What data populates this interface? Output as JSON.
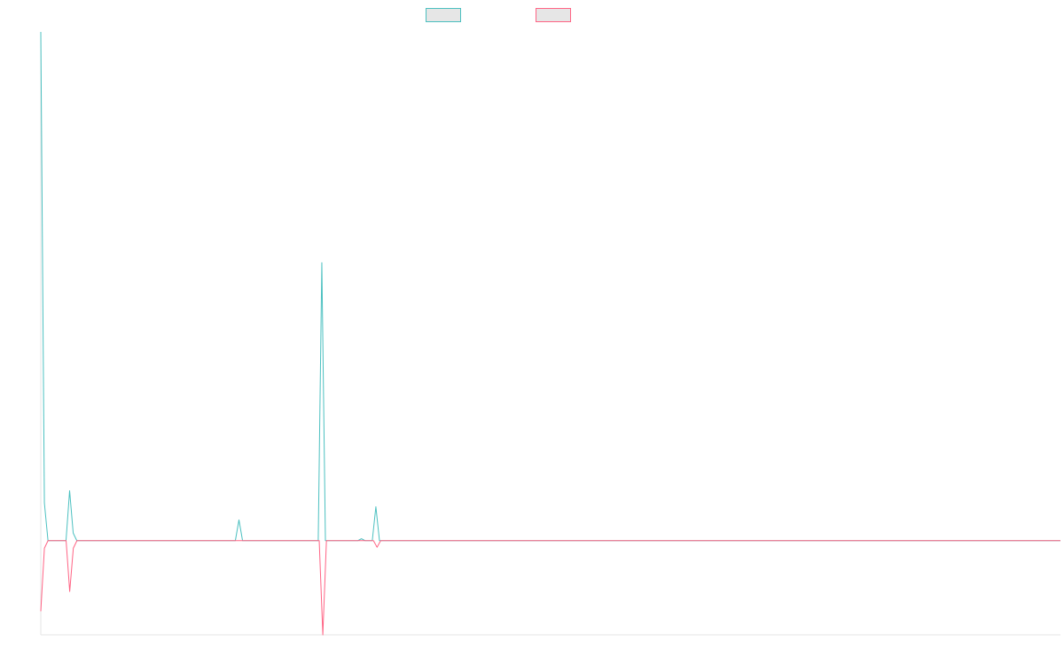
{
  "chart_data": {
    "type": "line",
    "title": "",
    "xlabel": "",
    "ylabel": "",
    "grid": false,
    "legend_position": "top-center",
    "ylim": [
      -100,
      540
    ],
    "series": [
      {
        "name": "",
        "color": "#4bc0c0",
        "values": [
          540,
          40,
          0,
          0,
          0,
          0,
          0,
          0,
          53,
          8,
          0,
          0,
          0,
          0,
          0,
          0,
          0,
          0,
          0,
          0,
          0,
          0,
          0,
          0,
          0,
          0,
          0,
          0,
          0,
          0,
          0,
          0,
          0,
          0,
          0,
          0,
          0,
          0,
          0,
          0,
          0,
          0,
          0,
          0,
          0,
          0,
          0,
          0,
          0,
          0,
          0,
          0,
          0,
          0,
          0,
          22,
          0,
          0,
          0,
          0,
          0,
          0,
          0,
          0,
          0,
          0,
          0,
          0,
          0,
          0,
          0,
          0,
          0,
          0,
          0,
          0,
          0,
          0,
          295,
          0,
          0,
          0,
          0,
          0,
          0,
          0,
          0,
          0,
          0,
          2,
          0,
          0,
          0,
          36,
          0,
          0,
          0,
          0,
          0,
          0,
          0,
          0,
          0,
          0,
          0,
          0,
          0,
          0,
          0,
          0,
          0,
          0,
          0,
          0,
          0,
          0,
          0,
          0,
          0,
          0,
          0,
          0,
          0,
          0,
          0,
          0,
          0,
          0,
          0,
          0,
          0,
          0,
          0,
          0,
          0,
          0,
          0,
          0,
          0,
          0,
          0,
          0,
          0,
          0,
          0,
          0,
          0,
          0,
          0,
          0,
          0,
          0,
          0,
          0,
          0,
          0,
          0,
          0,
          0,
          0,
          0,
          0,
          0,
          0,
          0,
          0,
          0,
          0,
          0,
          0,
          0,
          0,
          0,
          0,
          0,
          0,
          0,
          0,
          0,
          0,
          0,
          0,
          0,
          0,
          0,
          0,
          0,
          0,
          0,
          0,
          0,
          0,
          0,
          0,
          0,
          0,
          0,
          0,
          0,
          0,
          0,
          0,
          0,
          0,
          0,
          0,
          0,
          0,
          0,
          0,
          0,
          0,
          0,
          0,
          0,
          0,
          0,
          0,
          0,
          0,
          0,
          0,
          0,
          0,
          0,
          0,
          0,
          0,
          0,
          0,
          0,
          0,
          0,
          0,
          0,
          0,
          0,
          0,
          0,
          0,
          0,
          0,
          0,
          0,
          0,
          0,
          0,
          0,
          0,
          0,
          0,
          0,
          0,
          0,
          0,
          0,
          0,
          0,
          0,
          0,
          0,
          0,
          0,
          0,
          0,
          0,
          0,
          0,
          0,
          0,
          0,
          0,
          0,
          0,
          0,
          0,
          0,
          0,
          0,
          0,
          0,
          0,
          0,
          0
        ]
      },
      {
        "name": "",
        "color": "#ff6384",
        "values": [
          -75,
          -8,
          0,
          0,
          0,
          0,
          0,
          0,
          -54,
          -8,
          0,
          0,
          0,
          0,
          0,
          0,
          0,
          0,
          0,
          0,
          0,
          0,
          0,
          0,
          0,
          0,
          0,
          0,
          0,
          0,
          0,
          0,
          0,
          0,
          0,
          0,
          0,
          0,
          0,
          0,
          0,
          0,
          0,
          0,
          0,
          0,
          0,
          0,
          0,
          0,
          0,
          0,
          0,
          0,
          0,
          0,
          0,
          0,
          0,
          0,
          0,
          0,
          0,
          0,
          0,
          0,
          0,
          0,
          0,
          0,
          0,
          0,
          0,
          0,
          0,
          0,
          0,
          0,
          -100,
          0,
          0,
          0,
          0,
          0,
          0,
          0,
          0,
          0,
          0,
          0,
          0,
          0,
          0,
          -7,
          0,
          0,
          0,
          0,
          0,
          0,
          0,
          0,
          0,
          0,
          0,
          0,
          0,
          0,
          0,
          0,
          0,
          0,
          0,
          0,
          0,
          0,
          0,
          0,
          0,
          0,
          0,
          0,
          0,
          0,
          0,
          0,
          0,
          0,
          0,
          0,
          0,
          0,
          0,
          0,
          0,
          0,
          0,
          0,
          0,
          0,
          0,
          0,
          0,
          0,
          0,
          0,
          0,
          0,
          0,
          0,
          0,
          0,
          0,
          0,
          0,
          0,
          0,
          0,
          0,
          0,
          0,
          0,
          0,
          0,
          0,
          0,
          0,
          0,
          0,
          0,
          0,
          0,
          0,
          0,
          0,
          0,
          0,
          0,
          0,
          0,
          0,
          0,
          0,
          0,
          0,
          0,
          0,
          0,
          0,
          0,
          0,
          0,
          0,
          0,
          0,
          0,
          0,
          0,
          0,
          0,
          0,
          0,
          0,
          0,
          0,
          0,
          0,
          0,
          0,
          0,
          0,
          0,
          0,
          0,
          0,
          0,
          0,
          0,
          0,
          0,
          0,
          0,
          0,
          0,
          0,
          0,
          0,
          0,
          0,
          0,
          0,
          0,
          0,
          0,
          0,
          0,
          0,
          0,
          0,
          0,
          0,
          0,
          0,
          0,
          0,
          0,
          0,
          0,
          0,
          0,
          0,
          0,
          0,
          0,
          0,
          0,
          0,
          0,
          0,
          0,
          0,
          0,
          0,
          0,
          0,
          0,
          0,
          0,
          0,
          0,
          0,
          0,
          0,
          0,
          0,
          0,
          0,
          0,
          0,
          0,
          0,
          0,
          0
        ]
      }
    ]
  }
}
